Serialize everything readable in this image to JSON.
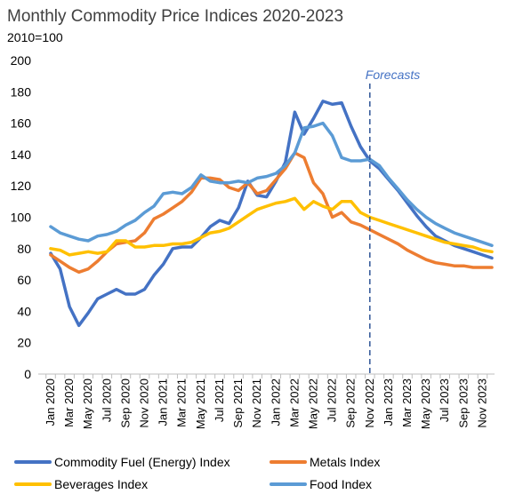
{
  "chart_data": {
    "type": "line",
    "title": "Monthly Commodity Price Indices 2020-2023",
    "subtitle": "2010=100",
    "ylim": [
      0,
      200
    ],
    "yticks": [
      0,
      20,
      40,
      60,
      80,
      100,
      120,
      140,
      160,
      180,
      200
    ],
    "grid": false,
    "legend_position": "bottom",
    "x_tick_labels": [
      "Jan 2020",
      "Mar 2020",
      "May 2020",
      "Jul 2020",
      "Sep 2020",
      "Nov 2020",
      "Jan 2021",
      "Mar 2021",
      "May 2021",
      "Jul 2021",
      "Sep 2021",
      "Nov 2021",
      "Jan 2022",
      "Mar 2022",
      "May 2022",
      "Jul 2022",
      "Sep 2022",
      "Nov 2022",
      "Jan 2023",
      "Mar 2023",
      "May 2023",
      "Jul 2023",
      "Sep 2023",
      "Nov 2023"
    ],
    "x_tick_months": [
      0,
      2,
      4,
      6,
      8,
      10,
      12,
      14,
      16,
      18,
      20,
      22,
      24,
      26,
      28,
      30,
      32,
      34,
      36,
      38,
      40,
      42,
      44,
      46
    ],
    "months": [
      "Jan 2020",
      "Feb 2020",
      "Mar 2020",
      "Apr 2020",
      "May 2020",
      "Jun 2020",
      "Jul 2020",
      "Aug 2020",
      "Sep 2020",
      "Oct 2020",
      "Nov 2020",
      "Dec 2020",
      "Jan 2021",
      "Feb 2021",
      "Mar 2021",
      "Apr 2021",
      "May 2021",
      "Jun 2021",
      "Jul 2021",
      "Aug 2021",
      "Sep 2021",
      "Oct 2021",
      "Nov 2021",
      "Dec 2021",
      "Jan 2022",
      "Feb 2022",
      "Mar 2022",
      "Apr 2022",
      "May 2022",
      "Jun 2022",
      "Jul 2022",
      "Aug 2022",
      "Sep 2022",
      "Oct 2022",
      "Nov 2022",
      "Dec 2022",
      "Jan 2023",
      "Feb 2023",
      "Mar 2023",
      "Apr 2023",
      "May 2023",
      "Jun 2023",
      "Jul 2023",
      "Aug 2023",
      "Sep 2023",
      "Oct 2023",
      "Nov 2023",
      "Dec 2023"
    ],
    "forecast": {
      "label": "Forecasts",
      "start_month": "Nov 2022"
    },
    "series": [
      {
        "name": "Commodity Fuel (Energy) Index",
        "color": "#4472C4",
        "values": [
          77,
          67,
          43,
          31,
          39,
          48,
          51,
          54,
          51,
          51,
          54,
          63,
          70,
          80,
          81,
          81,
          87,
          94,
          98,
          96,
          106,
          123,
          114,
          113,
          123,
          135,
          167,
          153,
          163,
          174,
          172,
          173,
          158,
          145,
          136,
          131,
          124,
          117,
          109,
          101,
          94,
          88,
          85,
          82,
          80,
          78,
          76,
          74
        ]
      },
      {
        "name": "Metals Index",
        "color": "#ED7D31",
        "values": [
          76,
          72,
          68,
          65,
          67,
          72,
          78,
          83,
          84,
          85,
          90,
          99,
          102,
          106,
          110,
          116,
          125,
          125,
          124,
          119,
          117,
          122,
          115,
          117,
          124,
          131,
          141,
          138,
          122,
          115,
          100,
          103,
          97,
          95,
          92,
          89,
          86,
          83,
          79,
          76,
          73,
          71,
          70,
          69,
          69,
          68,
          68,
          68
        ]
      },
      {
        "name": "Beverages Index",
        "color": "#FFC000",
        "values": [
          80,
          79,
          76,
          77,
          78,
          77,
          78,
          85,
          85,
          81,
          81,
          82,
          82,
          83,
          83,
          84,
          87,
          90,
          91,
          93,
          97,
          101,
          105,
          107,
          109,
          110,
          112,
          105,
          110,
          107,
          105,
          110,
          110,
          103,
          100,
          98,
          96,
          94,
          92,
          90,
          88,
          86,
          84,
          83,
          82,
          81,
          79,
          78
        ]
      },
      {
        "name": "Food Index",
        "color": "#5B9BD5",
        "values": [
          94,
          90,
          88,
          86,
          85,
          88,
          89,
          91,
          95,
          98,
          103,
          107,
          115,
          116,
          115,
          119,
          127,
          123,
          122,
          122,
          123,
          122,
          125,
          126,
          128,
          133,
          141,
          157,
          158,
          160,
          152,
          138,
          136,
          136,
          137,
          133,
          125,
          118,
          111,
          105,
          100,
          96,
          93,
          90,
          88,
          86,
          84,
          82
        ]
      }
    ]
  }
}
